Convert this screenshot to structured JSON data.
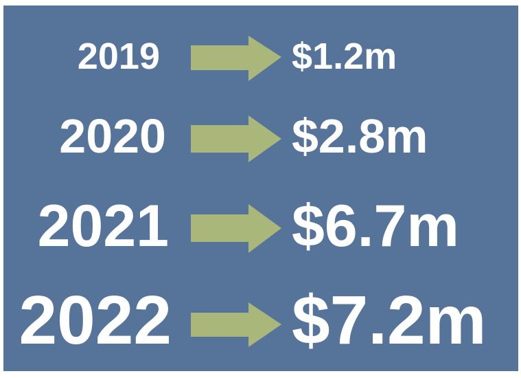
{
  "rows": [
    {
      "year": "2019",
      "value": "$1.2m"
    },
    {
      "year": "2020",
      "value": "$2.8m"
    },
    {
      "year": "2021",
      "value": "$6.7m"
    },
    {
      "year": "2022",
      "value": "$7.2m"
    }
  ]
}
